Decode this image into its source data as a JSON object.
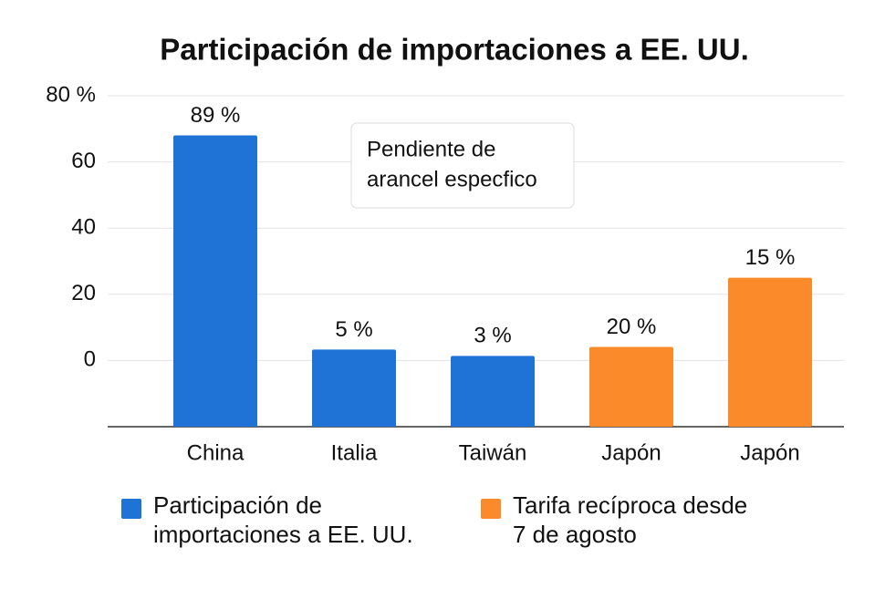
{
  "chart_data": {
    "type": "bar",
    "title": "Participación de importaciones a EE. UU.",
    "categories": [
      "China",
      "Italia",
      "Taiwán",
      "Japón",
      "Japón"
    ],
    "series": [
      {
        "name": "Participación de importaciones a EE. UU.",
        "color": "#1f73d6",
        "values": [
          68,
          3.3,
          1.4,
          null,
          null
        ]
      },
      {
        "name": "Tarifa recíproca desde 7 de agosto",
        "color": "#fb8a2a",
        "values": [
          null,
          null,
          null,
          4.1,
          25
        ]
      }
    ],
    "bar_annotations": [
      "89 %",
      "5 %",
      "3 %",
      "20 %",
      "15 %"
    ],
    "note": [
      "Pendiente de",
      "arancel especfico"
    ],
    "ylim": [
      -20,
      80
    ],
    "yticks": [
      0,
      20,
      40,
      60,
      {
        "value": 80,
        "label": "80 %"
      }
    ],
    "grid": true
  }
}
